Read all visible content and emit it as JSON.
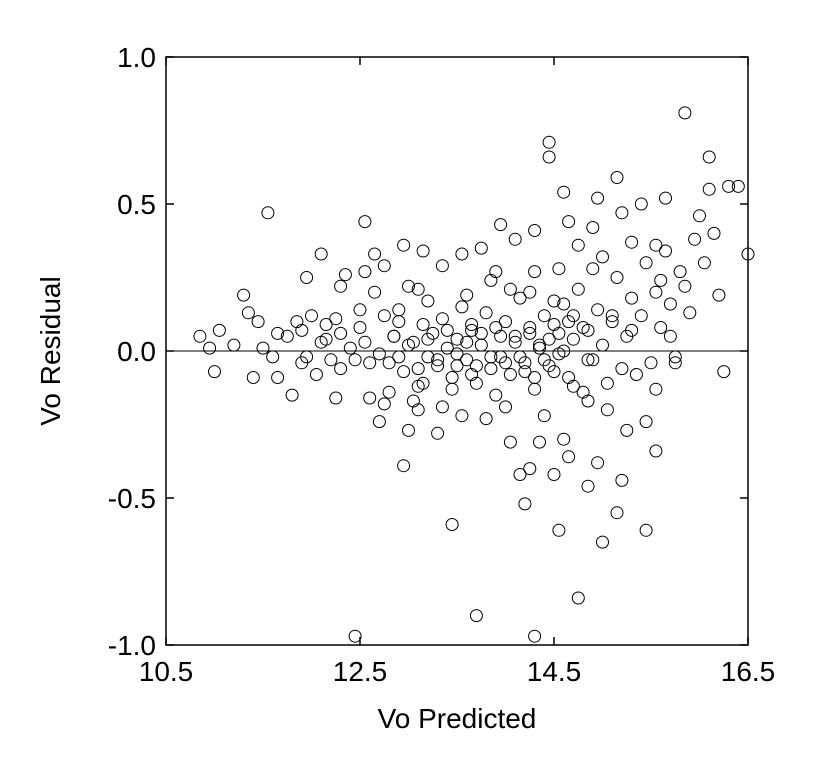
{
  "chart_data": {
    "type": "scatter",
    "title": "",
    "xlabel": "Vo Predicted",
    "ylabel": "Vo Residual",
    "xlim": [
      10.5,
      16.5
    ],
    "ylim": [
      -1.0,
      1.0
    ],
    "x_ticks": [
      "10.5",
      "12.5",
      "14.5",
      "16.5"
    ],
    "y_ticks": [
      "1.0",
      "0.5",
      "0.0",
      "-0.5",
      "-1.0"
    ],
    "reference_line_y": 0.0,
    "grid": false,
    "marker": "open-circle",
    "marker_color": "#000000",
    "series": [
      {
        "points": [
          [
            10.85,
            0.05
          ],
          [
            10.95,
            0.01
          ],
          [
            11.0,
            -0.07
          ],
          [
            11.05,
            0.07
          ],
          [
            11.2,
            0.02
          ],
          [
            11.3,
            0.19
          ],
          [
            11.35,
            0.13
          ],
          [
            11.4,
            -0.09
          ],
          [
            11.45,
            0.1
          ],
          [
            11.5,
            0.01
          ],
          [
            11.6,
            -0.02
          ],
          [
            11.65,
            -0.09
          ],
          [
            11.75,
            0.05
          ],
          [
            11.8,
            -0.15
          ],
          [
            11.85,
            0.1
          ],
          [
            11.9,
            0.07
          ],
          [
            11.95,
            -0.02
          ],
          [
            12.0,
            0.12
          ],
          [
            12.05,
            -0.08
          ],
          [
            12.1,
            0.03
          ],
          [
            12.15,
            0.09
          ],
          [
            12.2,
            -0.03
          ],
          [
            12.25,
            0.11
          ],
          [
            12.3,
            0.06
          ],
          [
            12.35,
            0.26
          ],
          [
            12.4,
            0.01
          ],
          [
            12.45,
            -0.03
          ],
          [
            12.5,
            0.08
          ],
          [
            12.55,
            0.03
          ],
          [
            12.6,
            -0.16
          ],
          [
            12.65,
            0.33
          ],
          [
            12.7,
            -0.24
          ],
          [
            12.75,
            0.12
          ],
          [
            12.8,
            -0.04
          ],
          [
            12.85,
            0.05
          ],
          [
            12.9,
            0.14
          ],
          [
            12.95,
            -0.07
          ],
          [
            13.0,
            0.22
          ],
          [
            13.05,
            0.03
          ],
          [
            13.1,
            -0.12
          ],
          [
            13.15,
            0.09
          ],
          [
            13.2,
            -0.02
          ],
          [
            13.25,
            0.06
          ],
          [
            13.3,
            -0.05
          ],
          [
            13.35,
            0.11
          ],
          [
            13.4,
            0.01
          ],
          [
            13.45,
            -0.09
          ],
          [
            13.5,
            0.04
          ],
          [
            13.55,
            0.15
          ],
          [
            13.6,
            -0.03
          ],
          [
            13.65,
            0.07
          ],
          [
            13.7,
            -0.11
          ],
          [
            13.75,
            0.02
          ],
          [
            13.8,
            0.13
          ],
          [
            13.85,
            -0.06
          ],
          [
            13.9,
            0.08
          ],
          [
            13.95,
            -0.02
          ],
          [
            14.0,
            0.1
          ],
          [
            14.05,
            -0.08
          ],
          [
            14.1,
            0.03
          ],
          [
            14.15,
            0.18
          ],
          [
            14.2,
            -0.04
          ],
          [
            14.25,
            0.06
          ],
          [
            14.3,
            -0.13
          ],
          [
            14.35,
            0.02
          ],
          [
            14.4,
            0.12
          ],
          [
            14.45,
            -0.05
          ],
          [
            14.5,
            0.09
          ],
          [
            14.55,
            -0.01
          ],
          [
            14.6,
            0.16
          ],
          [
            14.65,
            -0.09
          ],
          [
            14.7,
            0.04
          ],
          [
            14.75,
            0.21
          ],
          [
            14.8,
            -0.14
          ],
          [
            14.85,
            0.07
          ],
          [
            14.9,
            -0.03
          ],
          [
            14.95,
            0.14
          ],
          [
            15.0,
            0.02
          ],
          [
            15.05,
            -0.11
          ],
          [
            15.1,
            0.1
          ],
          [
            15.15,
            0.25
          ],
          [
            15.2,
            -0.06
          ],
          [
            15.25,
            0.05
          ],
          [
            15.3,
            0.18
          ],
          [
            15.35,
            -0.08
          ],
          [
            15.4,
            0.12
          ],
          [
            15.45,
            0.3
          ],
          [
            15.5,
            -0.04
          ],
          [
            15.55,
            0.2
          ],
          [
            15.6,
            0.08
          ],
          [
            15.65,
            0.34
          ],
          [
            15.7,
            0.16
          ],
          [
            15.75,
            -0.02
          ],
          [
            15.8,
            0.27
          ],
          [
            15.85,
            0.22
          ],
          [
            15.9,
            0.13
          ],
          [
            15.95,
            0.38
          ],
          [
            16.0,
            0.46
          ],
          [
            16.05,
            0.3
          ],
          [
            16.1,
            0.55
          ],
          [
            16.15,
            0.4
          ],
          [
            16.2,
            0.19
          ],
          [
            16.25,
            -0.07
          ],
          [
            16.3,
            0.56
          ],
          [
            16.4,
            0.56
          ],
          [
            16.5,
            0.33
          ],
          [
            16.1,
            0.66
          ],
          [
            15.85,
            0.81
          ],
          [
            15.65,
            0.52
          ],
          [
            15.4,
            0.5
          ],
          [
            15.15,
            0.59
          ],
          [
            14.9,
            0.42
          ],
          [
            14.75,
            0.36
          ],
          [
            14.6,
            0.54
          ],
          [
            14.45,
            0.71
          ],
          [
            14.45,
            0.66
          ],
          [
            14.3,
            0.41
          ],
          [
            14.1,
            0.38
          ],
          [
            13.95,
            0.43
          ],
          [
            13.75,
            0.35
          ],
          [
            13.55,
            0.33
          ],
          [
            13.35,
            0.29
          ],
          [
            13.1,
            0.21
          ],
          [
            12.95,
            0.36
          ],
          [
            12.75,
            0.29
          ],
          [
            12.55,
            0.27
          ],
          [
            12.3,
            0.22
          ],
          [
            12.1,
            0.33
          ],
          [
            11.95,
            0.25
          ],
          [
            11.55,
            0.47
          ],
          [
            12.55,
            0.44
          ],
          [
            12.65,
            0.2
          ],
          [
            13.15,
            0.34
          ],
          [
            13.6,
            0.19
          ],
          [
            13.9,
            0.27
          ],
          [
            14.25,
            0.2
          ],
          [
            14.55,
            0.28
          ],
          [
            14.65,
            0.44
          ],
          [
            15.0,
            0.32
          ],
          [
            15.3,
            0.37
          ],
          [
            15.6,
            0.24
          ],
          [
            15.55,
            0.36
          ],
          [
            14.95,
            0.52
          ],
          [
            15.2,
            0.47
          ],
          [
            11.65,
            0.06
          ],
          [
            11.9,
            -0.04
          ],
          [
            12.15,
            0.04
          ],
          [
            12.3,
            -0.06
          ],
          [
            12.5,
            0.14
          ],
          [
            12.7,
            -0.01
          ],
          [
            12.9,
            0.1
          ],
          [
            13.05,
            -0.17
          ],
          [
            13.2,
            0.17
          ],
          [
            13.35,
            -0.19
          ],
          [
            13.5,
            -0.05
          ],
          [
            13.65,
            0.09
          ],
          [
            13.8,
            -0.23
          ],
          [
            13.85,
            0.24
          ],
          [
            14.0,
            -0.19
          ],
          [
            14.05,
            0.21
          ],
          [
            14.2,
            -0.07
          ],
          [
            14.3,
            0.27
          ],
          [
            14.4,
            -0.22
          ],
          [
            14.5,
            0.17
          ],
          [
            14.6,
            -0.3
          ],
          [
            14.7,
            0.12
          ],
          [
            14.85,
            -0.17
          ],
          [
            14.9,
            0.28
          ],
          [
            15.05,
            -0.2
          ],
          [
            15.1,
            0.12
          ],
          [
            15.25,
            -0.27
          ],
          [
            15.3,
            0.07
          ],
          [
            15.45,
            -0.24
          ],
          [
            15.55,
            -0.13
          ],
          [
            15.7,
            0.05
          ],
          [
            15.75,
            -0.04
          ],
          [
            12.25,
            -0.16
          ],
          [
            12.6,
            -0.04
          ],
          [
            12.8,
            -0.14
          ],
          [
            13.0,
            -0.27
          ],
          [
            13.15,
            -0.11
          ],
          [
            13.3,
            -0.28
          ],
          [
            13.45,
            -0.13
          ],
          [
            13.55,
            -0.22
          ],
          [
            13.7,
            -0.05
          ],
          [
            13.9,
            -0.15
          ],
          [
            14.05,
            -0.31
          ],
          [
            14.15,
            -0.42
          ],
          [
            14.2,
            -0.52
          ],
          [
            14.25,
            -0.4
          ],
          [
            14.35,
            -0.31
          ],
          [
            14.5,
            -0.42
          ],
          [
            14.55,
            -0.61
          ],
          [
            14.65,
            -0.36
          ],
          [
            14.75,
            -0.84
          ],
          [
            14.85,
            -0.46
          ],
          [
            14.95,
            -0.38
          ],
          [
            15.0,
            -0.65
          ],
          [
            15.15,
            -0.55
          ],
          [
            15.2,
            -0.44
          ],
          [
            15.45,
            -0.61
          ],
          [
            15.55,
            -0.34
          ],
          [
            13.45,
            -0.59
          ],
          [
            13.7,
            -0.9
          ],
          [
            12.75,
            -0.18
          ],
          [
            12.95,
            -0.39
          ],
          [
            13.1,
            -0.2
          ],
          [
            12.45,
            -0.97
          ],
          [
            14.3,
            -0.97
          ],
          [
            14.0,
            -0.04
          ],
          [
            14.1,
            0.05
          ],
          [
            14.15,
            -0.02
          ],
          [
            14.25,
            0.08
          ],
          [
            14.3,
            -0.09
          ],
          [
            14.35,
            0.01
          ],
          [
            14.4,
            -0.03
          ],
          [
            14.45,
            0.04
          ],
          [
            14.5,
            -0.07
          ],
          [
            14.55,
            0.06
          ],
          [
            14.6,
            0.0
          ],
          [
            14.65,
            0.1
          ],
          [
            14.7,
            -0.12
          ],
          [
            14.8,
            0.08
          ],
          [
            14.85,
            -0.03
          ],
          [
            13.95,
            0.05
          ],
          [
            13.85,
            -0.02
          ],
          [
            13.75,
            0.06
          ],
          [
            13.65,
            -0.08
          ],
          [
            13.6,
            0.03
          ],
          [
            13.5,
            -0.01
          ],
          [
            13.4,
            0.07
          ],
          [
            13.3,
            -0.03
          ],
          [
            13.2,
            0.04
          ],
          [
            13.1,
            -0.06
          ],
          [
            13.0,
            0.02
          ],
          [
            12.9,
            -0.02
          ],
          [
            12.85,
            0.05
          ]
        ]
      }
    ]
  }
}
